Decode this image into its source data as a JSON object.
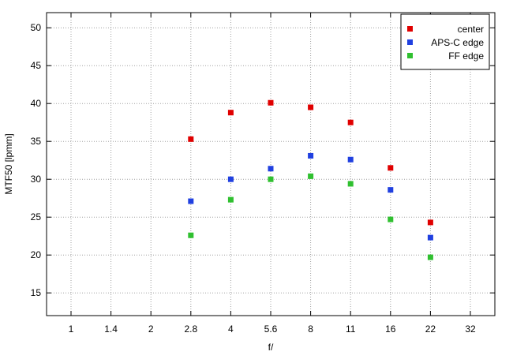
{
  "chart_data": {
    "type": "scatter",
    "title": "",
    "xlabel": "f/",
    "ylabel": "MTF50 [lpmm]",
    "x_ticks": [
      "1",
      "1.4",
      "2",
      "2.8",
      "4",
      "5.6",
      "8",
      "11",
      "16",
      "22",
      "32"
    ],
    "y_ticks": [
      15,
      20,
      25,
      30,
      35,
      40,
      45,
      50
    ],
    "ylim": [
      12,
      52
    ],
    "grid": true,
    "legend_position": "top-right",
    "series": [
      {
        "name": "center",
        "color": "#e00000",
        "points": [
          {
            "x": "2.8",
            "y": 35.3
          },
          {
            "x": "4",
            "y": 38.8
          },
          {
            "x": "5.6",
            "y": 40.1
          },
          {
            "x": "8",
            "y": 39.5
          },
          {
            "x": "11",
            "y": 37.5
          },
          {
            "x": "16",
            "y": 31.5
          },
          {
            "x": "22",
            "y": 24.3
          }
        ]
      },
      {
        "name": "APS-C edge",
        "color": "#2040e0",
        "points": [
          {
            "x": "2.8",
            "y": 27.1
          },
          {
            "x": "4",
            "y": 30.0
          },
          {
            "x": "5.6",
            "y": 31.4
          },
          {
            "x": "8",
            "y": 33.1
          },
          {
            "x": "11",
            "y": 32.6
          },
          {
            "x": "16",
            "y": 28.6
          },
          {
            "x": "22",
            "y": 22.3
          }
        ]
      },
      {
        "name": "FF edge",
        "color": "#30c030",
        "points": [
          {
            "x": "2.8",
            "y": 22.6
          },
          {
            "x": "4",
            "y": 27.3
          },
          {
            "x": "5.6",
            "y": 30.0
          },
          {
            "x": "8",
            "y": 30.4
          },
          {
            "x": "11",
            "y": 29.4
          },
          {
            "x": "16",
            "y": 24.7
          },
          {
            "x": "22",
            "y": 19.7
          }
        ]
      }
    ]
  }
}
